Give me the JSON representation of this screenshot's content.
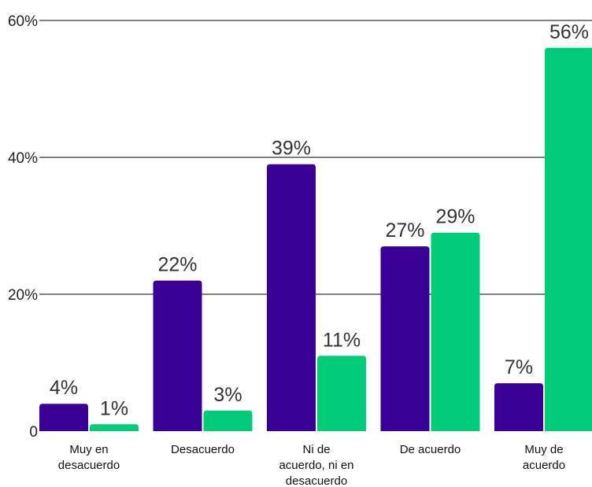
{
  "chart_data": {
    "type": "bar",
    "title": "",
    "xlabel": "",
    "ylabel": "",
    "categories": [
      [
        "Muy en",
        "desacuerdo"
      ],
      [
        "Desacuerdo"
      ],
      [
        "Ni de",
        "acuerdo, ni en",
        "desacuerdo"
      ],
      [
        "De acuerdo"
      ],
      [
        "Muy de",
        "acuerdo"
      ]
    ],
    "series": [
      {
        "values": [
          4,
          22,
          39,
          27,
          7
        ],
        "labels": [
          "4%",
          "22%",
          "39%",
          "27%",
          "7%"
        ],
        "color": "#3a0096"
      },
      {
        "values": [
          1,
          3,
          11,
          29,
          56
        ],
        "labels": [
          "1%",
          "3%",
          "11%",
          "29%",
          "56%"
        ],
        "color": "#00cc78"
      }
    ],
    "ylim": [
      0,
      60
    ],
    "yticks": [
      0,
      20,
      40,
      60
    ],
    "ytick_labels": [
      "0",
      "20%",
      "40%",
      "60%"
    ],
    "grid": true,
    "legend": "none"
  }
}
